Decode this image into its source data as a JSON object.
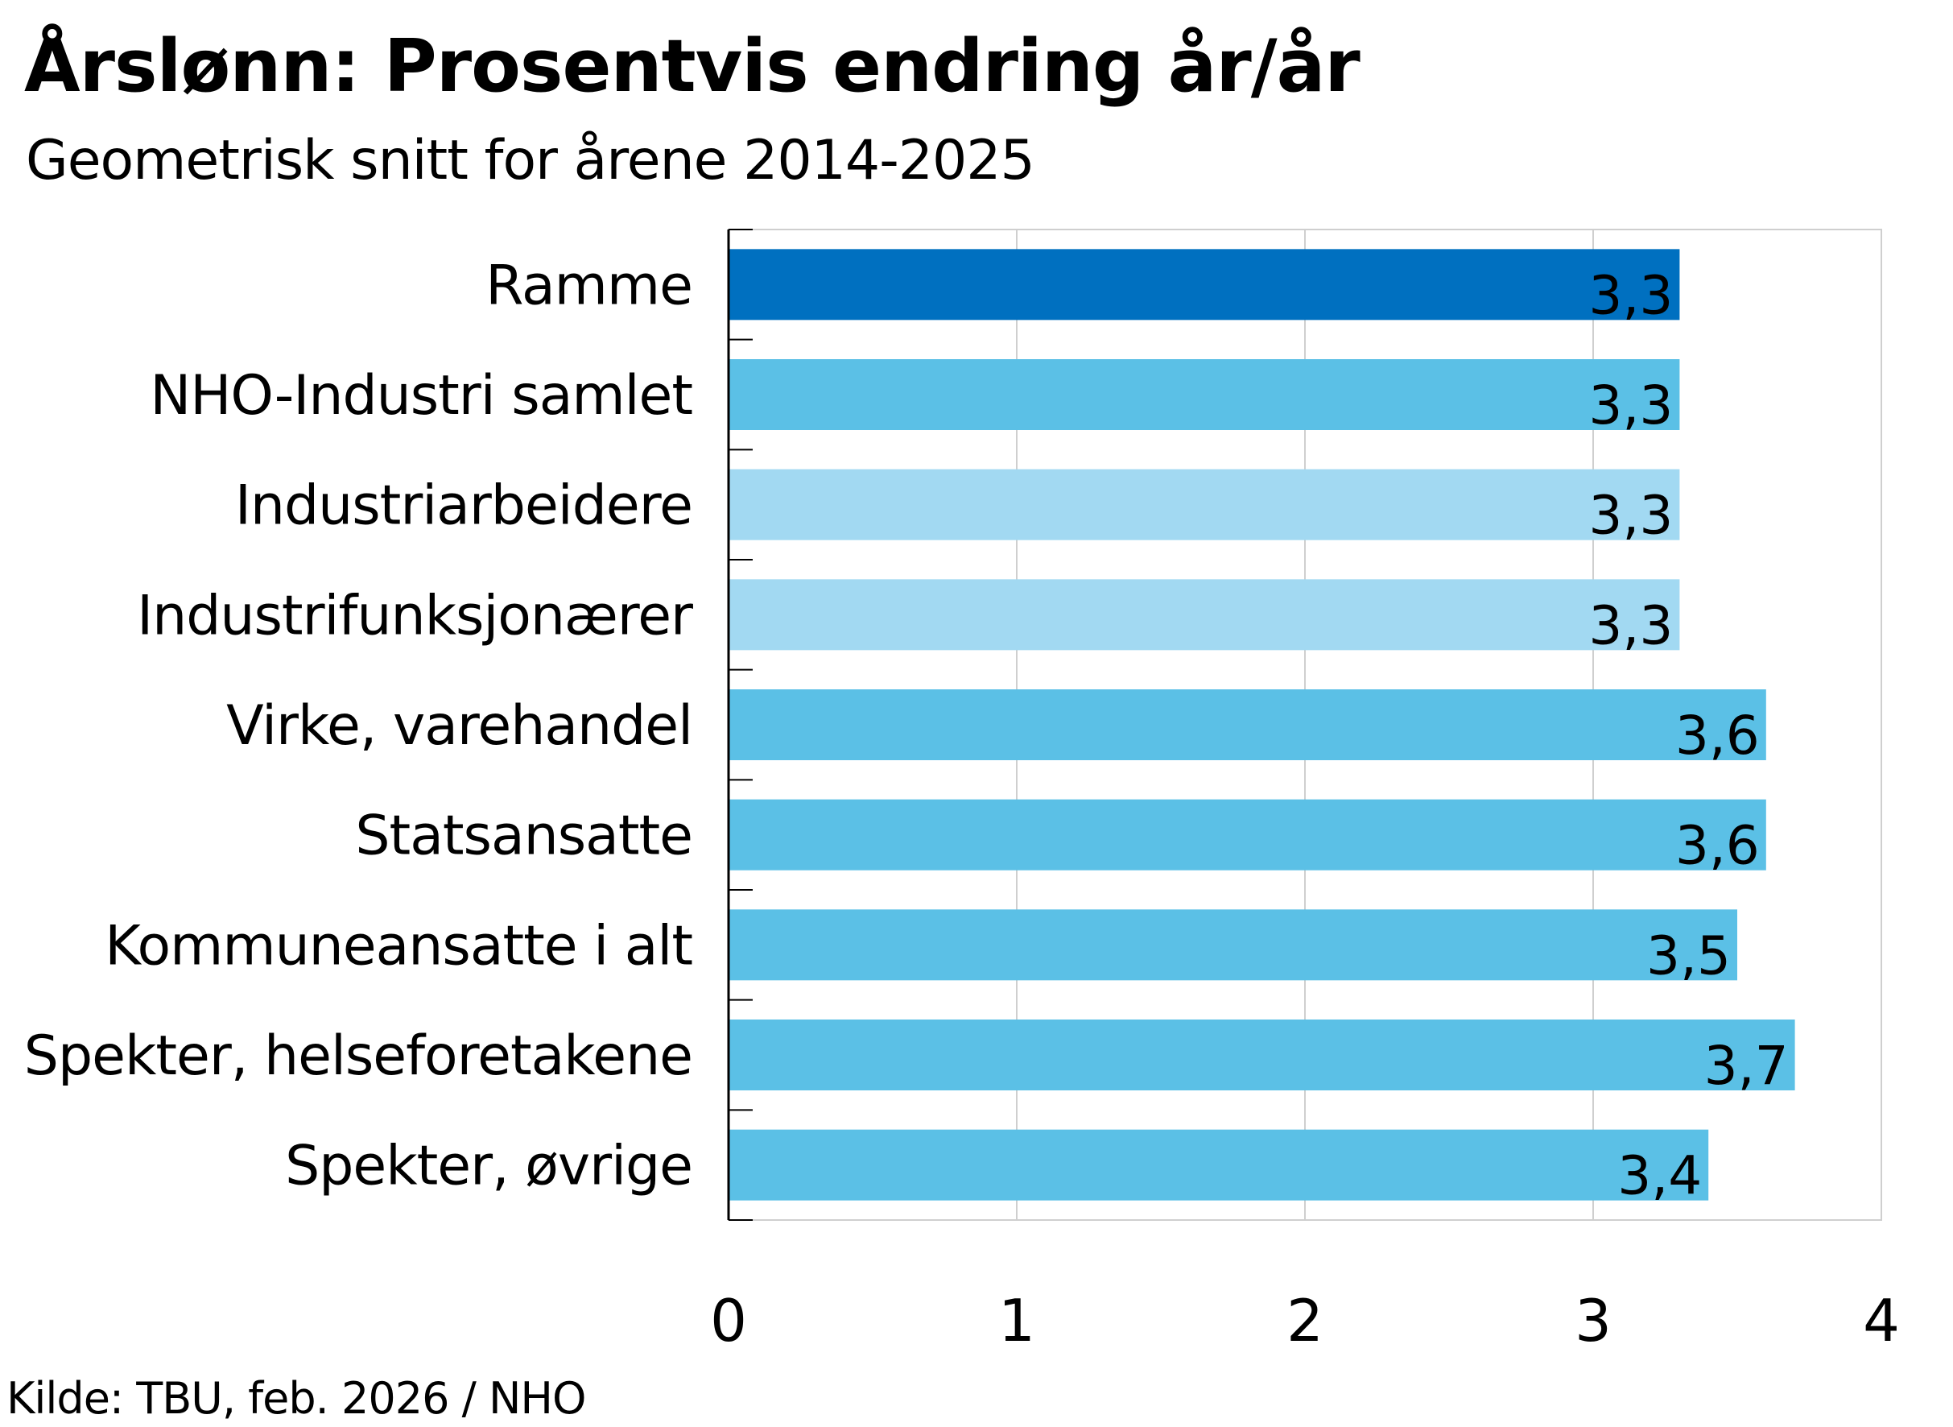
{
  "title": "Årslønn: Prosentvis endring år/år",
  "subtitle": "Geometrisk snitt for årene 2014-2025",
  "source": "Kilde: TBU, feb. 2026 / NHO",
  "colors": {
    "highlight": "#0070C0",
    "main": "#5BC0E6",
    "light": "#A2D9F2",
    "grid": "#CFCFCF",
    "axis": "#000000"
  },
  "chart_data": {
    "type": "bar",
    "orientation": "horizontal",
    "categories": [
      "Ramme",
      "NHO-Industri samlet",
      "Industriarbeidere",
      "Industrifunksjonærer",
      "Virke, varehandel",
      "Statsansatte",
      "Kommuneansatte i alt",
      "Spekter, helseforetakene",
      "Spekter, øvrige"
    ],
    "values": [
      3.3,
      3.3,
      3.3,
      3.3,
      3.6,
      3.6,
      3.5,
      3.7,
      3.4
    ],
    "value_labels": [
      "3,3",
      "3,3",
      "3,3",
      "3,3",
      "3,6",
      "3,6",
      "3,5",
      "3,7",
      "3,4"
    ],
    "bar_colors": [
      "highlight",
      "main",
      "light",
      "light",
      "main",
      "main",
      "main",
      "main",
      "main"
    ],
    "xlim": [
      0,
      4
    ],
    "xticks": [
      "0",
      "1",
      "2",
      "3",
      "4"
    ],
    "grid": true,
    "legend": "none"
  }
}
